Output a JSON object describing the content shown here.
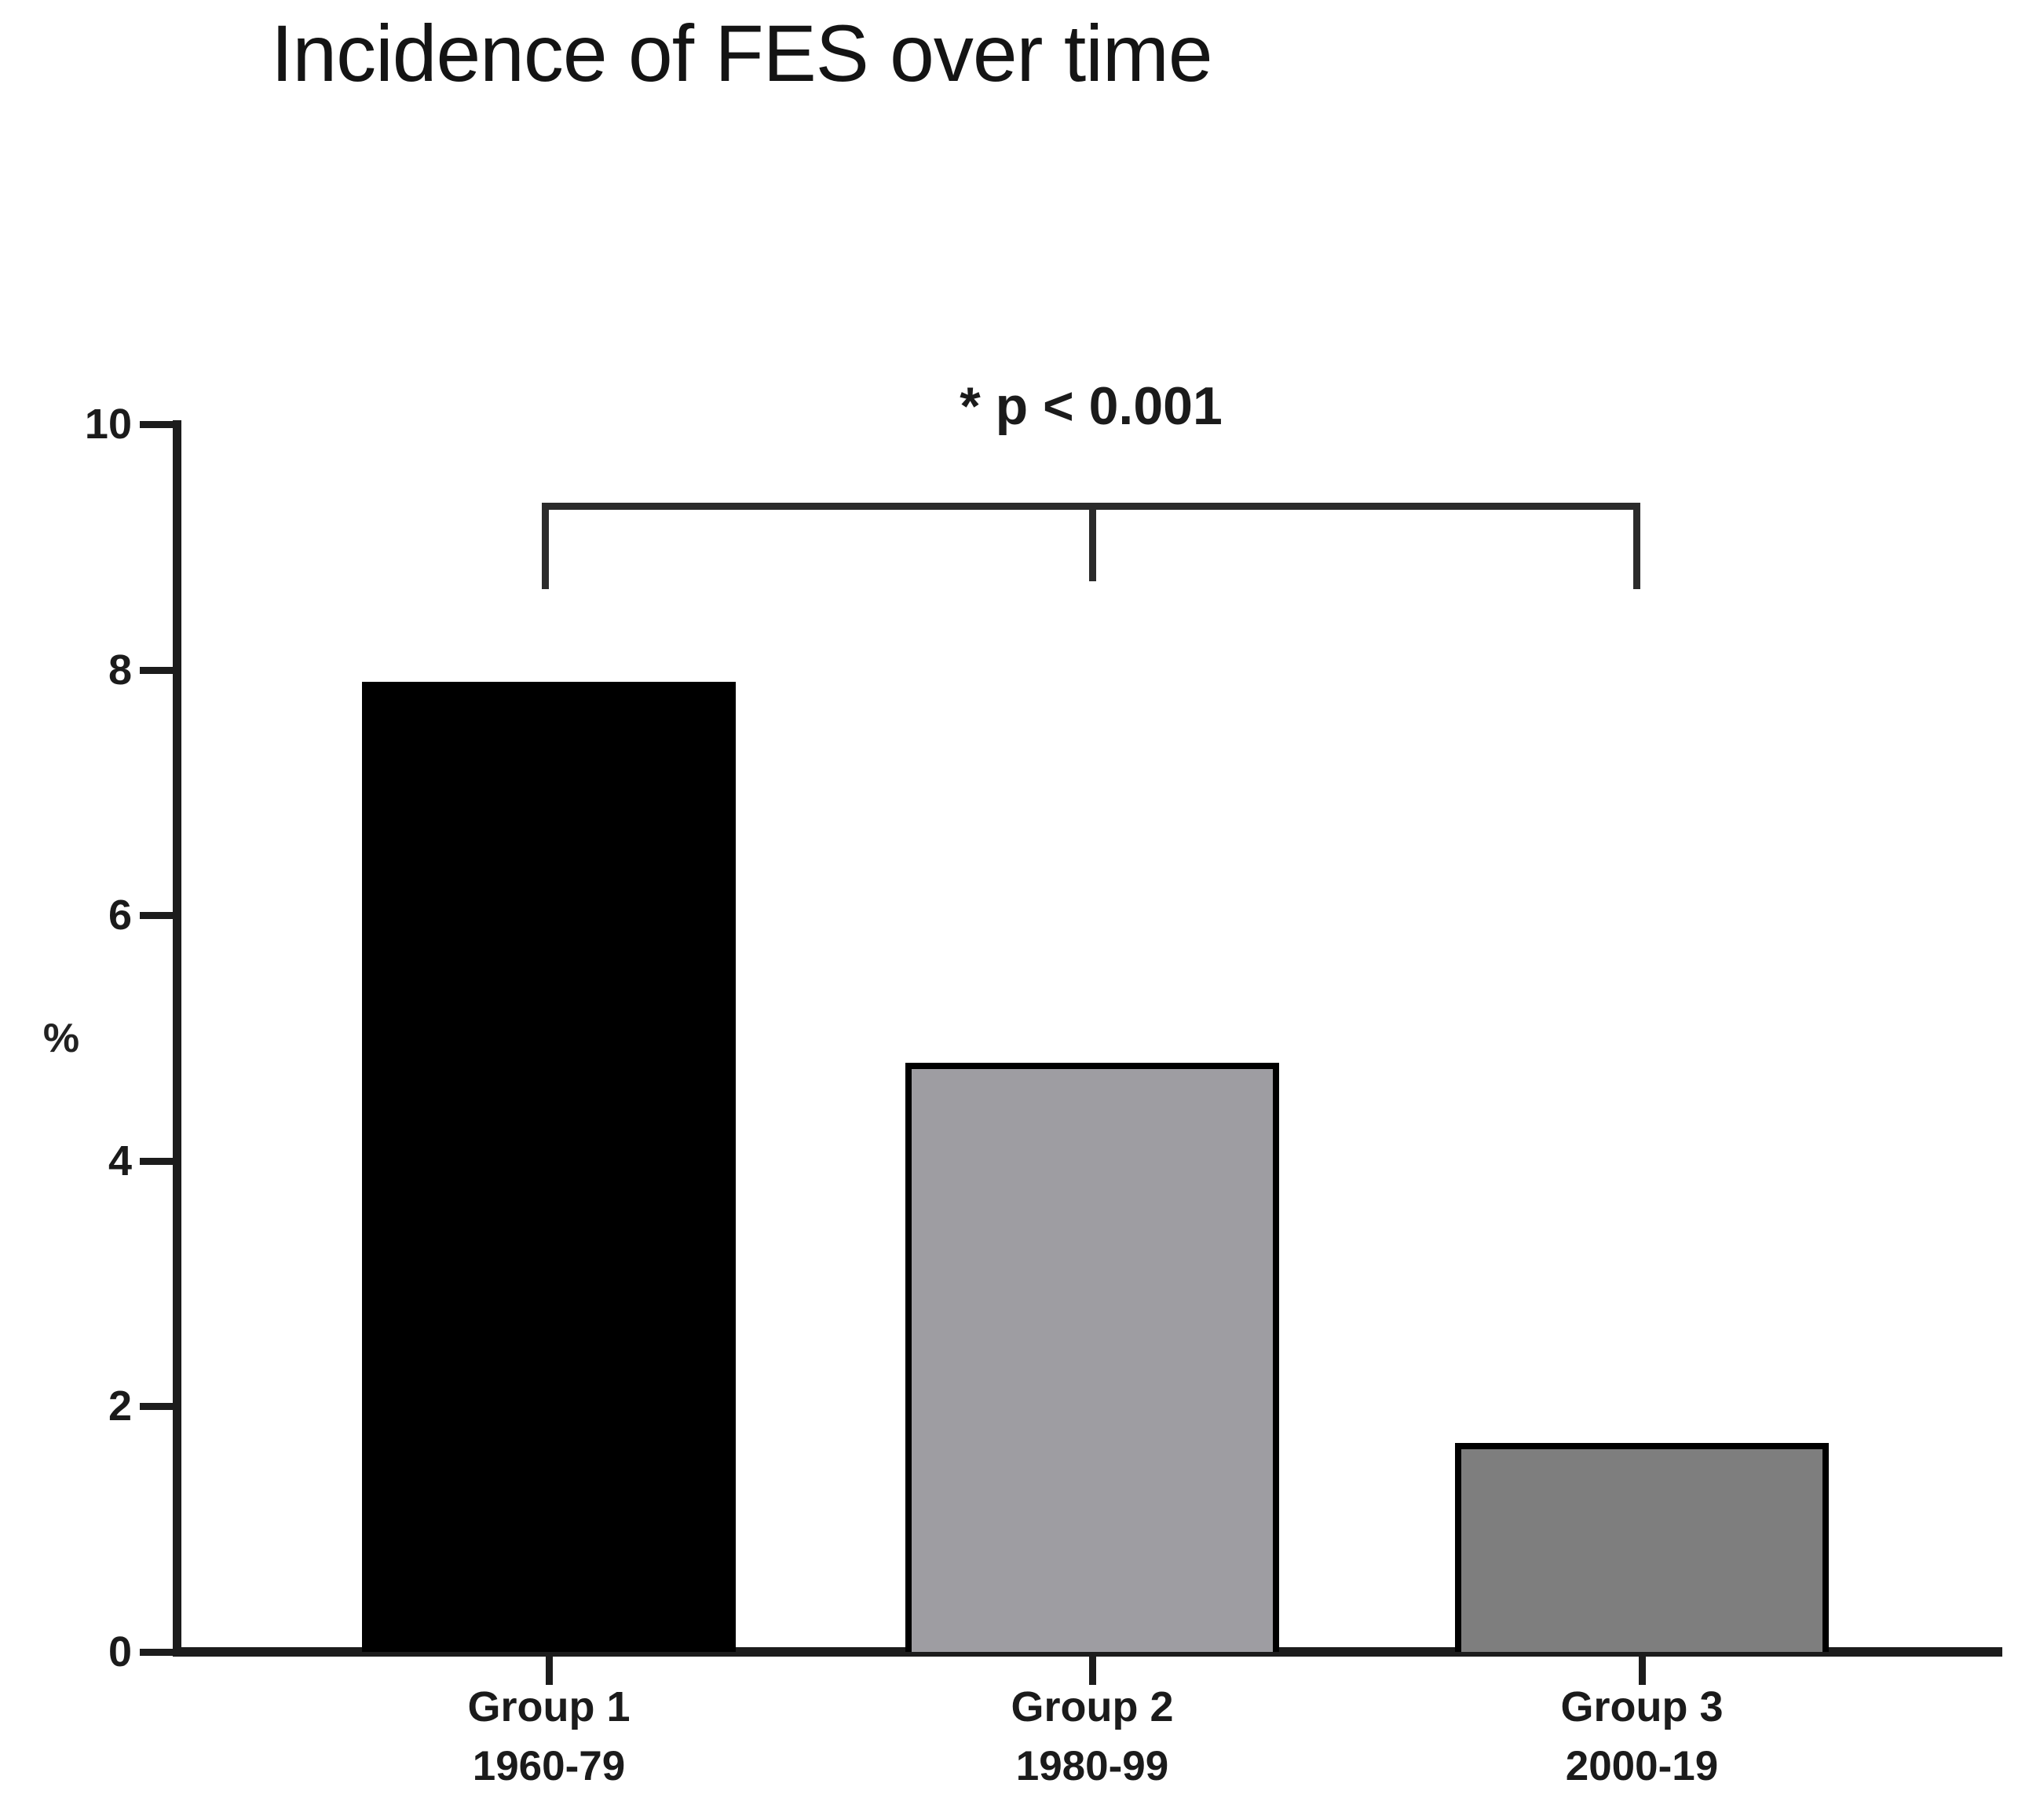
{
  "chart_data": {
    "type": "bar",
    "title": "Incidence of FES over time",
    "ylabel": "%",
    "ylim": [
      0,
      10
    ],
    "yticks": [
      0,
      2,
      4,
      6,
      8,
      10
    ],
    "categories": [
      {
        "group": "Group 1",
        "period": "1960-79"
      },
      {
        "group": "Group 2",
        "period": "1980-99"
      },
      {
        "group": "Group 3",
        "period": "2000-19"
      }
    ],
    "values": [
      7.9,
      4.8,
      1.7
    ],
    "bar_colors": [
      "#000000",
      "#9e9da2",
      "#7e7e7e"
    ],
    "bar_border_color": "#000000",
    "grid": false,
    "legend_position": "none",
    "annotation": {
      "text": "* p < 0.001",
      "spans_groups": [
        "Group 1",
        "Group 2",
        "Group 3"
      ]
    }
  }
}
